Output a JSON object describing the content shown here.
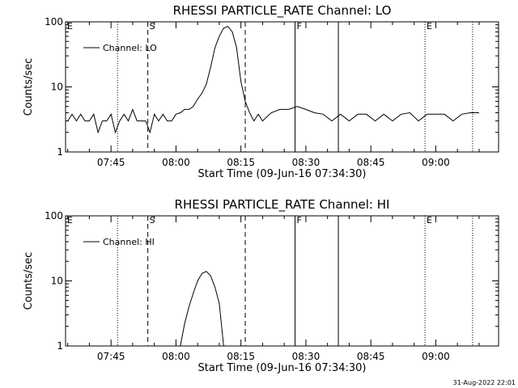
{
  "timestamp": "31-Aug-2022 22:01",
  "chart_data": [
    {
      "type": "line",
      "title": "RHESSI PARTICLE_RATE Channel: LO",
      "xlabel": "Start Time (09-Jun-16 07:34:30)",
      "ylabel": "Counts/sec",
      "yscale": "log",
      "ylim": [
        1,
        100
      ],
      "y_ticks": [
        "1",
        "10",
        "100"
      ],
      "xlim": [
        "07:34:30",
        "09:14:30"
      ],
      "x_ticks": [
        "07:45",
        "08:00",
        "08:15",
        "08:30",
        "08:45",
        "09:00"
      ],
      "legend": "Channel: LO",
      "legend_position": "top-left",
      "markers": [
        {
          "label": "E",
          "time": "07:34:30",
          "style": "dotted"
        },
        {
          "label": "",
          "time": "07:46:30",
          "style": "dotted"
        },
        {
          "label": "S",
          "time": "07:53:30",
          "style": "dashed"
        },
        {
          "label": "",
          "time": "08:16:00",
          "style": "dashed"
        },
        {
          "label": "F",
          "time": "08:27:30",
          "style": "solid"
        },
        {
          "label": "",
          "time": "08:37:30",
          "style": "solid"
        },
        {
          "label": "E",
          "time": "08:57:30",
          "style": "dotted"
        },
        {
          "label": "",
          "time": "09:08:30",
          "style": "dotted"
        }
      ],
      "series": [
        {
          "name": "Channel: LO",
          "x": [
            "07:35:00",
            "07:36:00",
            "07:37:00",
            "07:38:00",
            "07:39:00",
            "07:40:00",
            "07:41:00",
            "07:42:00",
            "07:43:00",
            "07:44:00",
            "07:45:00",
            "07:46:00",
            "07:47:00",
            "07:48:00",
            "07:49:00",
            "07:50:00",
            "07:51:00",
            "07:52:00",
            "07:53:00",
            "07:54:00",
            "07:55:00",
            "07:56:00",
            "07:57:00",
            "07:58:00",
            "07:59:00",
            "08:00:00",
            "08:01:00",
            "08:02:00",
            "08:03:00",
            "08:04:00",
            "08:05:00",
            "08:06:00",
            "08:07:00",
            "08:08:00",
            "08:09:00",
            "08:10:00",
            "08:11:00",
            "08:12:00",
            "08:13:00",
            "08:14:00",
            "08:15:00",
            "08:16:00",
            "08:17:00",
            "08:18:00",
            "08:19:00",
            "08:20:00",
            "08:22:00",
            "08:24:00",
            "08:26:00",
            "08:28:00",
            "08:30:00",
            "08:32:00",
            "08:34:00",
            "08:36:00",
            "08:38:00",
            "08:40:00",
            "08:42:00",
            "08:44:00",
            "08:46:00",
            "08:48:00",
            "08:50:00",
            "08:52:00",
            "08:54:00",
            "08:56:00",
            "08:58:00",
            "09:00:00",
            "09:02:00",
            "09:04:00",
            "09:06:00",
            "09:08:00",
            "09:10:00"
          ],
          "y": [
            3.0,
            3.8,
            3.0,
            3.8,
            3.0,
            3.0,
            3.8,
            2.0,
            3.0,
            3.0,
            3.8,
            2.0,
            3.0,
            3.8,
            3.0,
            4.5,
            3.0,
            3.0,
            3.0,
            2.0,
            3.8,
            3.0,
            3.8,
            3.0,
            3.0,
            3.8,
            4.0,
            4.5,
            4.5,
            5.0,
            6.5,
            8.0,
            11,
            20,
            40,
            60,
            80,
            85,
            70,
            40,
            12,
            6.0,
            4.0,
            3.0,
            3.8,
            3.0,
            4.0,
            4.5,
            4.5,
            5.0,
            4.5,
            4.0,
            3.8,
            3.0,
            3.8,
            3.0,
            3.8,
            3.8,
            3.0,
            3.8,
            3.0,
            3.8,
            4.0,
            3.0,
            3.8,
            3.8,
            3.8,
            3.0,
            3.8,
            4.0,
            4.0
          ]
        }
      ]
    },
    {
      "type": "line",
      "title": "RHESSI PARTICLE_RATE Channel: HI",
      "xlabel": "Start Time (09-Jun-16 07:34:30)",
      "ylabel": "Counts/sec",
      "yscale": "log",
      "ylim": [
        1,
        100
      ],
      "y_ticks": [
        "1",
        "10",
        "100"
      ],
      "xlim": [
        "07:34:30",
        "09:14:30"
      ],
      "x_ticks": [
        "07:45",
        "08:00",
        "08:15",
        "08:30",
        "08:45",
        "09:00"
      ],
      "legend": "Channel: HI",
      "legend_position": "top-left",
      "markers": [
        {
          "label": "E",
          "time": "07:34:30",
          "style": "dotted"
        },
        {
          "label": "",
          "time": "07:46:30",
          "style": "dotted"
        },
        {
          "label": "S",
          "time": "07:53:30",
          "style": "dashed"
        },
        {
          "label": "",
          "time": "08:16:00",
          "style": "dashed"
        },
        {
          "label": "F",
          "time": "08:27:30",
          "style": "solid"
        },
        {
          "label": "",
          "time": "08:37:30",
          "style": "solid"
        },
        {
          "label": "E",
          "time": "08:57:30",
          "style": "dotted"
        },
        {
          "label": "",
          "time": "09:08:30",
          "style": "dotted"
        }
      ],
      "series": [
        {
          "name": "Channel: HI",
          "x": [
            "08:01:00",
            "08:02:00",
            "08:03:00",
            "08:04:00",
            "08:05:00",
            "08:06:00",
            "08:07:00",
            "08:08:00",
            "08:09:00",
            "08:10:00",
            "08:11:00"
          ],
          "y": [
            1.0,
            2.2,
            4.0,
            6.5,
            10,
            13,
            14,
            12,
            8.0,
            4.5,
            1.0
          ]
        }
      ]
    }
  ]
}
